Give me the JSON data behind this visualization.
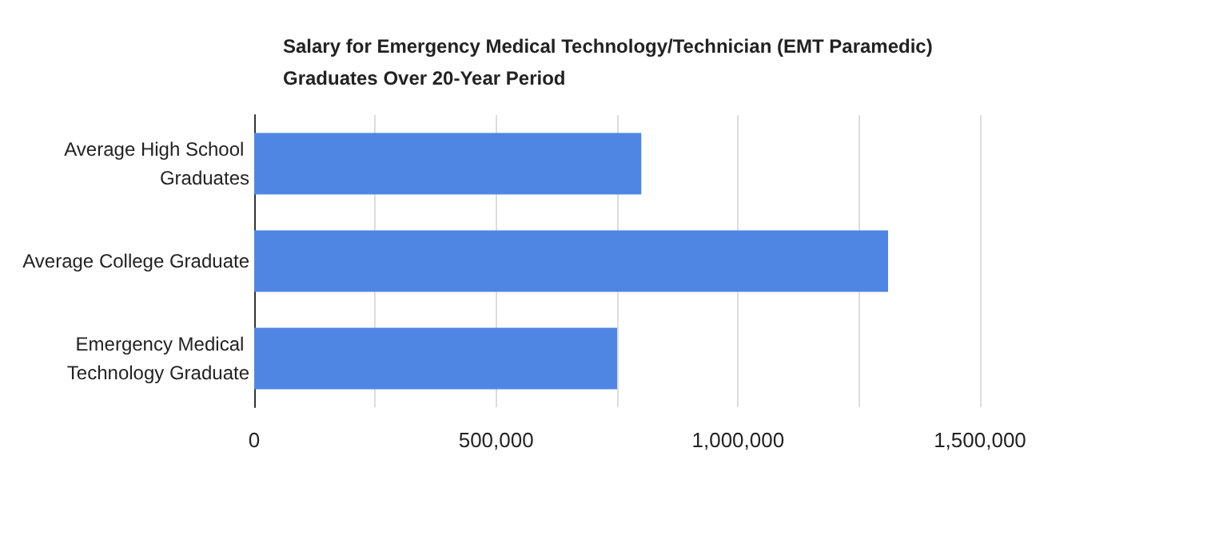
{
  "chart_data": {
    "type": "bar",
    "orientation": "horizontal",
    "title": "Salary for Emergency Medical Technology/Technician (EMT Paramedic) Graduates Over 20-Year Period",
    "categories": [
      "Average High School Graduates",
      "Average College Graduate",
      "Emergency Medical Technology Graduate"
    ],
    "values": [
      800000,
      1310000,
      750000
    ],
    "color": "#5086e3",
    "xlim": [
      0,
      1500000
    ],
    "xticks": [
      {
        "value": 0,
        "label": "0"
      },
      {
        "value": 250000,
        "label": null
      },
      {
        "value": 500000,
        "label": "500,000"
      },
      {
        "value": 750000,
        "label": null
      },
      {
        "value": 1000000,
        "label": "1,000,000"
      },
      {
        "value": 1250000,
        "label": null
      },
      {
        "value": 1500000,
        "label": "1,500,000"
      }
    ],
    "grid": "x"
  }
}
